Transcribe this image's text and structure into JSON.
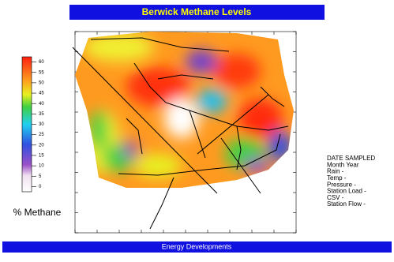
{
  "header": {
    "title": "Berwick Methane Levels"
  },
  "legend": {
    "label": "% Methane",
    "min": -2.5,
    "max": 62.5,
    "ticks": [
      0,
      5,
      10,
      15,
      20,
      25,
      30,
      35,
      40,
      45,
      50,
      55,
      60
    ]
  },
  "info": {
    "lines": [
      "DATE SAMPLED",
      "Month Year",
      "Rain -",
      "Temp -",
      "Pressure -",
      "Station Load -",
      "CSV -",
      "Station Flow -"
    ]
  },
  "footer": {
    "text": "Energy Developments"
  }
}
